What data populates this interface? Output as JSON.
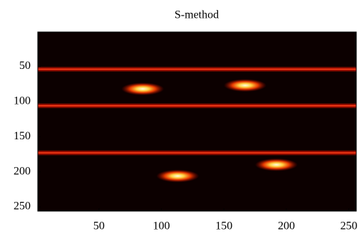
{
  "chart_data": {
    "type": "heatmap",
    "title": "S-method",
    "xlim": [
      1,
      256
    ],
    "ylim": [
      1,
      256
    ],
    "xticks": [
      50,
      100,
      150,
      200,
      250
    ],
    "yticks": [
      50,
      100,
      150,
      200,
      250
    ],
    "y_inverted": true,
    "lines_y": [
      54,
      106,
      173
    ],
    "peaks": {
      "x": [
        85,
        167,
        192,
        113
      ],
      "y": [
        82,
        77,
        190,
        206
      ]
    }
  }
}
